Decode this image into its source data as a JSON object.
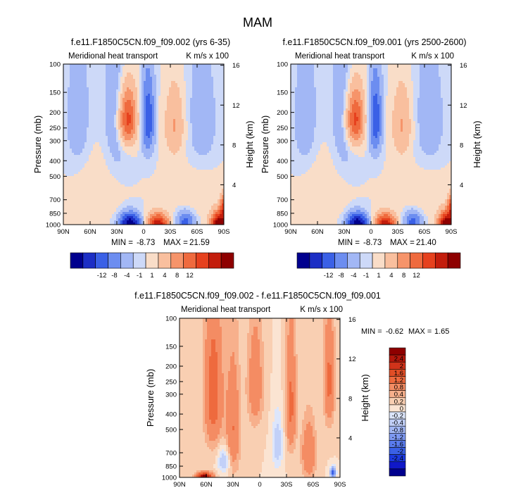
{
  "figure": {
    "title": "MAM"
  },
  "palettes": {
    "main": [
      "#00008e",
      "#1c2ec5",
      "#3a60e6",
      "#6c8df0",
      "#a2b7f5",
      "#cdd9f8",
      "#f9ddc8",
      "#f9bf9e",
      "#f6946a",
      "#ef6a3e",
      "#e6411e",
      "#c31d0c",
      "#8e0000"
    ],
    "diff": [
      "#00008e",
      "#1018c8",
      "#1c3ae0",
      "#3a60e6",
      "#5a7cee",
      "#7e99f2",
      "#a2b7f5",
      "#c2d0f8",
      "#dde6fb",
      "#fbe4d2",
      "#f9cfb2",
      "#f7b08c",
      "#f48c63",
      "#ee6a3e",
      "#e04e26",
      "#d0331a",
      "#b3170c",
      "#8e0000"
    ]
  },
  "chart_data": [
    {
      "type": "heatmap",
      "name": "panel_left",
      "title": "f.e11.F1850C5CN.f09_f09.002 (yrs 6-35)",
      "subtitle_left": "Meridional heat transport",
      "subtitle_right": "K m/s x 100",
      "ylabel": "Pressure (mb)",
      "ylabel_right": "Height (km)",
      "x_ticks": [
        "90N",
        "60N",
        "30N",
        "0",
        "30S",
        "60S",
        "90S"
      ],
      "y_ticks": [
        "100",
        "150",
        "200",
        "250",
        "300",
        "400",
        "500",
        "700",
        "850",
        "1000"
      ],
      "y_right_ticks": [
        "16",
        "12",
        "8",
        "4"
      ],
      "stats": {
        "min_label": "MIN =",
        "min": "-8.73",
        "max_label": "MAX =",
        "max": "21.59"
      },
      "colorbar": {
        "orientation": "horizontal",
        "labels": [
          "-12",
          "-8",
          "-4",
          "-1",
          "1",
          "4",
          "8",
          "12"
        ]
      },
      "field": [
        {
          "lat": 73,
          "p": 230,
          "sx": 15,
          "sy": 220,
          "amp": -0.17
        },
        {
          "lat": 30,
          "p": 210,
          "sx": 15,
          "sy": 240,
          "amp": -0.21
        },
        {
          "lat": 18,
          "p": 220,
          "sx": 10,
          "sy": 90,
          "amp": 0.85
        },
        {
          "lat": -5,
          "p": 220,
          "sx": 7,
          "sy": 120,
          "amp": -0.63
        },
        {
          "lat": -35,
          "p": 240,
          "sx": 11,
          "sy": 120,
          "amp": 0.32
        },
        {
          "lat": -65,
          "p": 260,
          "sx": 20,
          "sy": 240,
          "amp": -0.17
        },
        {
          "lat": -62,
          "p": 560,
          "sx": 28,
          "sy": 260,
          "amp": 0.1
        },
        {
          "lat": 55,
          "p": 600,
          "sx": 25,
          "sy": 320,
          "amp": 0.1
        },
        {
          "lat": 15,
          "p": 980,
          "sx": 11,
          "sy": 130,
          "amp": -1.2
        },
        {
          "lat": -16,
          "p": 990,
          "sx": 11,
          "sy": 140,
          "amp": 1.05
        },
        {
          "lat": -47,
          "p": 960,
          "sx": 9,
          "sy": 130,
          "amp": -0.55
        },
        {
          "lat": -85,
          "p": 1000,
          "sx": 9,
          "sy": 160,
          "amp": 1.5
        },
        {
          "lat": -90,
          "p": 770,
          "sx": 4,
          "sy": 120,
          "amp": 0.7
        }
      ]
    },
    {
      "type": "heatmap",
      "name": "panel_right",
      "title": "f.e11.F1850C5CN.f09_f09.001 (yrs 2500-2600)",
      "subtitle_left": "Meridional heat transport",
      "subtitle_right": "K m/s x 100",
      "ylabel": "Pressure (mb)",
      "ylabel_right": "Height (km)",
      "x_ticks": [
        "90N",
        "60N",
        "30N",
        "0",
        "30S",
        "60S",
        "90S"
      ],
      "y_ticks": [
        "100",
        "150",
        "200",
        "250",
        "300",
        "400",
        "500",
        "700",
        "850",
        "1000"
      ],
      "y_right_ticks": [
        "16",
        "12",
        "8",
        "4"
      ],
      "stats": {
        "min_label": "MIN =",
        "min": "-8.73",
        "max_label": "MAX =",
        "max": "21.40"
      },
      "colorbar": {
        "orientation": "horizontal",
        "labels": [
          "-12",
          "-8",
          "-4",
          "-1",
          "1",
          "4",
          "8",
          "12"
        ]
      },
      "field": [
        {
          "lat": 73,
          "p": 230,
          "sx": 15,
          "sy": 220,
          "amp": -0.17
        },
        {
          "lat": 30,
          "p": 210,
          "sx": 15,
          "sy": 240,
          "amp": -0.21
        },
        {
          "lat": 18,
          "p": 220,
          "sx": 10,
          "sy": 90,
          "amp": 0.84
        },
        {
          "lat": -5,
          "p": 220,
          "sx": 7,
          "sy": 120,
          "amp": -0.63
        },
        {
          "lat": -35,
          "p": 240,
          "sx": 11,
          "sy": 120,
          "amp": 0.32
        },
        {
          "lat": -65,
          "p": 260,
          "sx": 20,
          "sy": 240,
          "amp": -0.17
        },
        {
          "lat": -62,
          "p": 560,
          "sx": 28,
          "sy": 260,
          "amp": 0.1
        },
        {
          "lat": 55,
          "p": 600,
          "sx": 25,
          "sy": 320,
          "amp": 0.1
        },
        {
          "lat": 15,
          "p": 980,
          "sx": 11,
          "sy": 130,
          "amp": -1.2
        },
        {
          "lat": -16,
          "p": 990,
          "sx": 11,
          "sy": 140,
          "amp": 1.05
        },
        {
          "lat": -47,
          "p": 960,
          "sx": 9,
          "sy": 130,
          "amp": -0.55
        },
        {
          "lat": -85,
          "p": 1000,
          "sx": 9,
          "sy": 160,
          "amp": 1.48
        },
        {
          "lat": -90,
          "p": 770,
          "sx": 4,
          "sy": 120,
          "amp": 0.7
        }
      ]
    },
    {
      "type": "heatmap",
      "name": "panel_diff",
      "title": "f.e11.F1850C5CN.f09_f09.002 - f.e11.F1850C5CN.f09_f09.001",
      "subtitle_left": "Meridional heat transport",
      "subtitle_right": "K m/s x 100",
      "ylabel": "Pressure (mb)",
      "ylabel_right": "Height (km)",
      "x_ticks": [
        "90N",
        "60N",
        "30N",
        "0",
        "30S",
        "60S",
        "90S"
      ],
      "y_ticks": [
        "100",
        "150",
        "200",
        "250",
        "300",
        "400",
        "500",
        "700",
        "850",
        "1000"
      ],
      "y_right_ticks": [
        "16",
        "12",
        "8",
        "4"
      ],
      "stats": {
        "min_label": "MIN =",
        "min": "-0.62",
        "max_label": "MAX =",
        "max": "1.65"
      },
      "colorbar": {
        "orientation": "vertical",
        "labels": [
          "2.4",
          "2",
          "1.6",
          "1.2",
          "0.8",
          "0.4",
          "0.2",
          "0",
          "-0.2",
          "-0.4",
          "-0.8",
          "-1.2",
          "-1.6",
          "-2",
          "-2.4"
        ]
      },
      "field": [
        {
          "lat": 52,
          "p": 300,
          "sx": 10,
          "sy": 300,
          "amp": 0.11
        },
        {
          "lat": 30,
          "p": 500,
          "sx": 8,
          "sy": 400,
          "amp": 0.08
        },
        {
          "lat": 5,
          "p": 260,
          "sx": 9,
          "sy": 200,
          "amp": 0.07
        },
        {
          "lat": -35,
          "p": 350,
          "sx": 6,
          "sy": 300,
          "amp": 0.09
        },
        {
          "lat": -55,
          "p": 700,
          "sx": 8,
          "sy": 300,
          "amp": 0.08
        },
        {
          "lat": -78,
          "p": 250,
          "sx": 6,
          "sy": 200,
          "amp": 0.09
        },
        {
          "lat": 40,
          "p": 780,
          "sx": 7,
          "sy": 150,
          "amp": -0.07
        },
        {
          "lat": -20,
          "p": 620,
          "sx": 6,
          "sy": 250,
          "amp": -0.06
        },
        {
          "lat": 62,
          "p": 1000,
          "sx": 9,
          "sy": 70,
          "amp": 0.22
        },
        {
          "lat": 62,
          "p": 1000,
          "sx": 3,
          "sy": 35,
          "amp": 0.28
        },
        {
          "lat": -82,
          "p": 930,
          "sx": 3,
          "sy": 70,
          "amp": -0.22
        }
      ]
    }
  ]
}
